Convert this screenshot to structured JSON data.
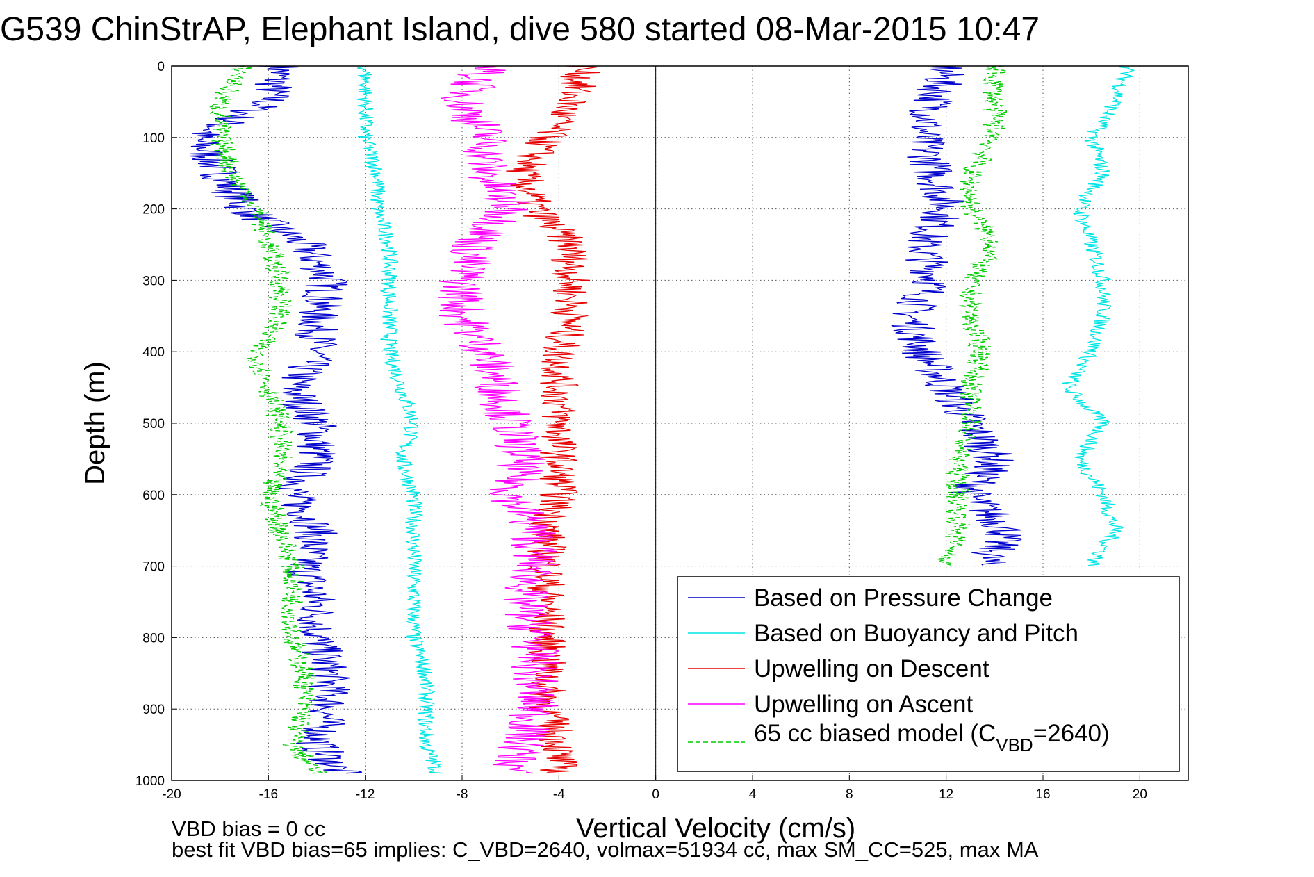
{
  "chart_data": {
    "type": "line",
    "title": "G539 ChinStrAP, Elephant Island, dive 580 started 08-Mar-2015 10:47",
    "xlabel": "Vertical Velocity (cm/s)",
    "ylabel": "Depth (m)",
    "xlim": [
      -20,
      22
    ],
    "ylim": [
      0,
      1000
    ],
    "y_reversed": true,
    "grid": true,
    "legend_position": "bottom-right",
    "x_ticks": [
      "-20",
      "-16",
      "-12",
      "-8",
      "-4",
      "0",
      "4",
      "8",
      "12",
      "16",
      "20"
    ],
    "y_ticks": [
      "0",
      "100",
      "200",
      "300",
      "400",
      "500",
      "600",
      "700",
      "800",
      "900",
      "1000"
    ],
    "series": [
      {
        "name": "Based on Pressure Change",
        "color": "#0000cc",
        "style": "solid",
        "descent": {
          "depth": [
            0,
            50,
            100,
            150,
            200,
            250,
            300,
            350,
            400,
            450,
            500,
            550,
            600,
            650,
            700,
            750,
            800,
            850,
            900,
            950,
            990
          ],
          "velocity": [
            -15.5,
            -16,
            -19,
            -18,
            -17,
            -14.5,
            -13.5,
            -14,
            -14,
            -15,
            -14,
            -14,
            -15,
            -14,
            -14.5,
            -14,
            -14,
            -13.5,
            -13.5,
            -14,
            -13
          ]
        },
        "ascent": {
          "depth": [
            0,
            50,
            100,
            150,
            200,
            250,
            300,
            350,
            400,
            450,
            500,
            550,
            600,
            650,
            700
          ],
          "velocity": [
            12,
            11.5,
            11,
            11.5,
            12,
            11,
            11.5,
            10.5,
            11,
            12,
            13,
            14,
            13,
            14.5,
            13.5
          ]
        }
      },
      {
        "name": "Based on Buoyancy and Pitch",
        "color": "#00e5e5",
        "style": "solid",
        "descent": {
          "depth": [
            0,
            50,
            100,
            150,
            200,
            250,
            300,
            350,
            400,
            450,
            500,
            550,
            600,
            650,
            700,
            750,
            800,
            850,
            900,
            950,
            990
          ],
          "velocity": [
            -12,
            -12,
            -12,
            -11.5,
            -11.5,
            -11,
            -11,
            -11,
            -11,
            -10.5,
            -10,
            -10.5,
            -10,
            -10,
            -10,
            -10,
            -10,
            -9.5,
            -9.5,
            -9.5,
            -9
          ]
        },
        "ascent": {
          "depth": [
            0,
            50,
            100,
            150,
            200,
            250,
            300,
            350,
            400,
            450,
            500,
            550,
            600,
            650,
            700
          ],
          "velocity": [
            19.5,
            19,
            18,
            18.5,
            17.5,
            18,
            18.5,
            18.5,
            18,
            17,
            18.5,
            17.5,
            18.5,
            19,
            18
          ]
        }
      },
      {
        "name": "Upwelling on Descent",
        "color": "#e60000",
        "style": "solid",
        "depth": [
          0,
          50,
          100,
          150,
          200,
          250,
          300,
          350,
          400,
          450,
          500,
          550,
          600,
          650,
          700,
          750,
          800,
          850,
          900,
          950,
          990
        ],
        "velocity": [
          -3,
          -3.5,
          -4.5,
          -5.5,
          -5,
          -3.5,
          -3.5,
          -3.5,
          -4,
          -4,
          -4,
          -4,
          -4,
          -4.5,
          -4.5,
          -4.5,
          -4.5,
          -4.5,
          -4.5,
          -4,
          -4
        ]
      },
      {
        "name": "Upwelling on Ascent",
        "color": "#ff00ff",
        "style": "solid",
        "depth": [
          0,
          50,
          100,
          150,
          200,
          250,
          300,
          350,
          400,
          450,
          500,
          550,
          600,
          650,
          700,
          750,
          800,
          850,
          900,
          950,
          990
        ],
        "velocity": [
          -7,
          -8,
          -7,
          -7,
          -6,
          -7.5,
          -8,
          -8,
          -7,
          -6.5,
          -6,
          -5.5,
          -6,
          -5,
          -5,
          -5.5,
          -5,
          -5,
          -5,
          -5.5,
          -6
        ]
      },
      {
        "name": "65 cc biased model (C",
        "name_sub": "VBD",
        "name_tail": "=2640)",
        "color": "#00cc00",
        "style": "dashed",
        "descent": {
          "depth": [
            0,
            50,
            100,
            150,
            200,
            250,
            300,
            350,
            400,
            450,
            500,
            550,
            600,
            650,
            700,
            750,
            800,
            850,
            900,
            950,
            990
          ],
          "velocity": [
            -17,
            -18,
            -18,
            -17.5,
            -16.5,
            -16,
            -15.5,
            -15.5,
            -16.5,
            -16,
            -15.5,
            -15.5,
            -16,
            -15.5,
            -15,
            -15,
            -15,
            -14.5,
            -14.5,
            -15,
            -14
          ]
        },
        "ascent": {
          "depth": [
            0,
            50,
            100,
            150,
            200,
            250,
            300,
            350,
            400,
            450,
            500,
            550,
            600,
            650,
            700
          ],
          "velocity": [
            14,
            14,
            14,
            13,
            13,
            14,
            13,
            13,
            13.5,
            13,
            13,
            12.5,
            12.5,
            12.5,
            12
          ]
        }
      }
    ],
    "footnotes": [
      "VBD bias = 0 cc",
      "best fit VBD bias=65 implies: C_VBD=2640, volmax=51934 cc, max SM_CC=525, max MA"
    ]
  }
}
